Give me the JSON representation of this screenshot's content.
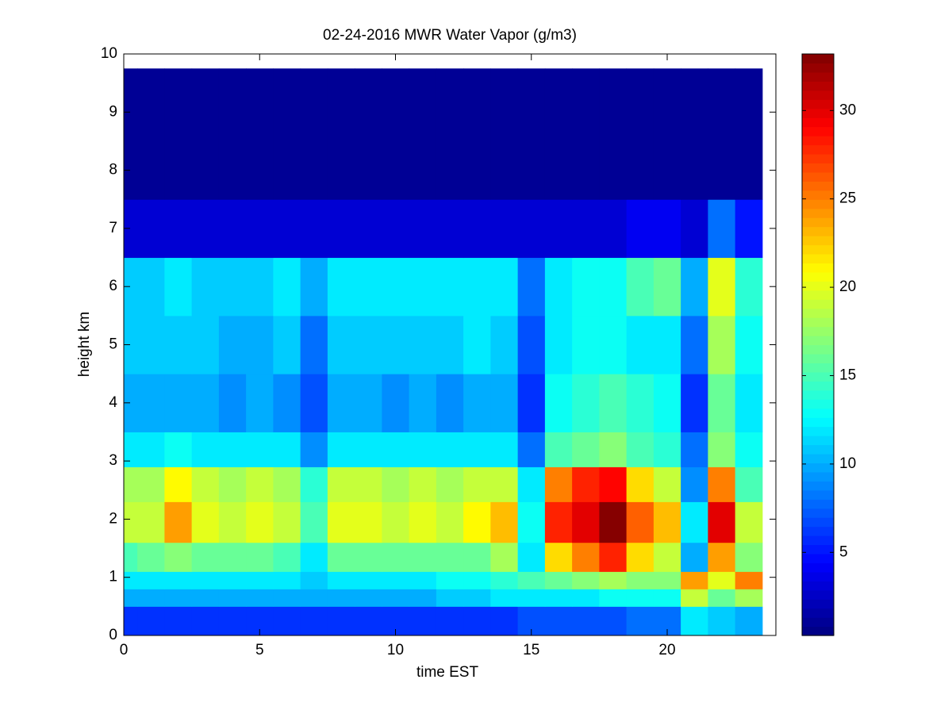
{
  "chart_data": {
    "type": "heatmap",
    "title": "02-24-2016 MWR Water Vapor (g/m3)",
    "x_label": "time EST",
    "y_label": "height km",
    "xlim": [
      0,
      24
    ],
    "ylim": [
      0,
      10
    ],
    "xticks": [
      0,
      5,
      10,
      15,
      20
    ],
    "yticks": [
      0,
      1,
      2,
      3,
      4,
      5,
      6,
      7,
      8,
      9,
      10
    ],
    "x_edges": [
      0,
      0.5,
      1.5,
      2.5,
      3.5,
      4.5,
      5.5,
      6.5,
      7.5,
      8.5,
      9.5,
      10.5,
      11.5,
      12.5,
      13.5,
      14.5,
      15.5,
      16.5,
      17.5,
      18.5,
      19.5,
      20.5,
      21.5,
      22.5,
      23.5
    ],
    "y_edges": [
      0,
      0.5,
      0.8,
      1.1,
      1.6,
      2.3,
      2.9,
      3.5,
      4.5,
      5.5,
      6.5,
      7.5,
      9.75
    ],
    "z": [
      [
        6,
        6,
        6,
        6,
        6,
        6,
        6,
        6,
        6,
        6,
        6,
        6,
        6,
        6,
        6,
        7,
        7,
        7,
        7,
        8,
        8,
        12,
        11,
        10
      ],
      [
        10,
        10,
        10,
        10,
        10,
        10,
        10,
        10,
        10,
        10,
        10,
        10,
        11,
        11,
        12,
        12,
        12,
        12,
        13,
        13,
        13,
        19,
        16,
        18
      ],
      [
        12,
        12,
        12,
        12,
        12,
        12,
        12,
        11,
        12,
        12,
        12,
        12,
        13,
        13,
        14,
        15,
        16,
        17,
        18,
        17,
        17,
        24,
        20,
        25
      ],
      [
        15,
        16,
        17,
        16,
        16,
        16,
        15,
        12,
        16,
        16,
        16,
        16,
        16,
        16,
        18,
        12,
        22,
        25,
        28,
        22,
        19,
        10,
        24,
        17
      ],
      [
        19,
        19,
        24,
        20,
        19,
        20,
        19,
        15,
        20,
        20,
        19,
        20,
        19,
        21,
        23,
        13,
        28,
        30,
        33,
        26,
        23,
        12,
        30,
        19
      ],
      [
        18,
        18,
        21,
        19,
        18,
        19,
        18,
        14,
        19,
        19,
        18,
        19,
        18,
        19,
        19,
        12,
        25,
        28,
        29,
        22,
        19,
        9,
        25,
        15
      ],
      [
        12,
        12,
        13,
        12,
        12,
        12,
        12,
        9,
        12,
        12,
        12,
        12,
        12,
        12,
        12,
        8,
        15,
        16,
        17,
        15,
        14,
        8,
        17,
        13
      ],
      [
        10,
        10,
        10,
        10,
        9,
        10,
        9,
        7,
        10,
        10,
        9,
        10,
        9,
        10,
        10,
        6,
        13,
        14,
        15,
        14,
        13,
        6,
        16,
        12
      ],
      [
        11,
        11,
        11,
        11,
        10,
        10,
        11,
        8,
        11,
        11,
        11,
        11,
        11,
        12,
        11,
        7,
        12,
        13,
        13,
        12,
        12,
        8,
        18,
        13
      ],
      [
        11,
        11,
        12,
        11,
        11,
        11,
        12,
        10,
        12,
        12,
        12,
        12,
        12,
        12,
        12,
        8,
        12,
        13,
        13,
        15,
        16,
        10,
        20,
        14
      ],
      [
        3,
        3,
        3,
        3,
        3,
        3,
        3,
        3,
        3,
        3,
        3,
        3,
        3,
        3,
        3,
        3,
        3,
        3,
        3,
        4,
        4,
        3,
        8,
        5
      ],
      [
        1,
        1,
        1,
        1,
        1,
        1,
        1,
        1,
        1,
        1,
        1,
        1,
        1,
        1,
        1,
        1,
        1,
        1,
        1,
        1,
        1,
        1,
        1,
        1
      ]
    ],
    "clim": [
      0.3,
      33.2
    ],
    "cticks": [
      5,
      10,
      15,
      20,
      25,
      30
    ],
    "colormap": "jet"
  }
}
